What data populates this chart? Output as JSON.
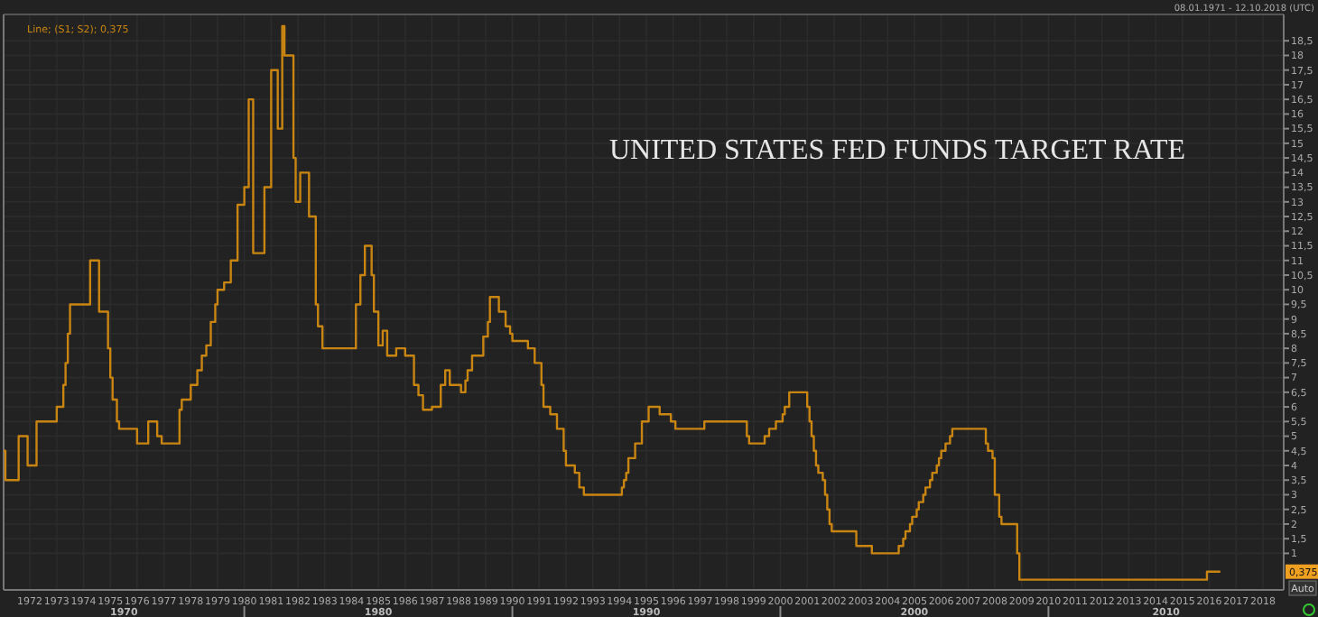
{
  "chart_data": {
    "type": "step",
    "title": "UNITED STATES FED FUNDS TARGET RATE",
    "series": [
      {
        "name": "Line; (S1; S2); 0,375",
        "color": "#c98512",
        "x": [
          "1971-01-08",
          "1971-02",
          "1971-08",
          "1971-12",
          "1972-04",
          "1973-01",
          "1973-04",
          "1973-05",
          "1973-06",
          "1973-07",
          "1974-04",
          "1974-08",
          "1974-12",
          "1975-01",
          "1975-02",
          "1975-04",
          "1975-05",
          "1976-01",
          "1976-06",
          "1976-10",
          "1976-12",
          "1977-08",
          "1977-09",
          "1978-01",
          "1978-04",
          "1978-06",
          "1978-08",
          "1978-10",
          "1978-12",
          "1979-01",
          "1979-04",
          "1979-07",
          "1979-10",
          "1980-01",
          "1980-03",
          "1980-05",
          "1980-10",
          "1981-01",
          "1981-04",
          "1981-06",
          "1981-07",
          "1981-11",
          "1981-12",
          "1982-02",
          "1982-06",
          "1982-09",
          "1982-10",
          "1982-12",
          "1984-03",
          "1984-05",
          "1984-07",
          "1984-10",
          "1984-11",
          "1985-01",
          "1985-03",
          "1985-05",
          "1985-09",
          "1986-01",
          "1986-05",
          "1986-07",
          "1986-09",
          "1987-01",
          "1987-05",
          "1987-07",
          "1987-09",
          "1988-02",
          "1988-04",
          "1988-05",
          "1988-07",
          "1988-12",
          "1989-02",
          "1989-03",
          "1989-07",
          "1989-10",
          "1989-12",
          "1990-01",
          "1990-08",
          "1990-11",
          "1991-02",
          "1991-03",
          "1991-06",
          "1991-09",
          "1991-12",
          "1992-01",
          "1992-05",
          "1992-07",
          "1992-09",
          "1994-02",
          "1994-03",
          "1994-04",
          "1994-05",
          "1994-08",
          "1994-11",
          "1995-02",
          "1995-07",
          "1995-12",
          "1996-02",
          "1997-03",
          "1998-10",
          "1998-11",
          "1999-06",
          "1999-08",
          "1999-11",
          "2000-02",
          "2000-03",
          "2000-05",
          "2001-01",
          "2001-02",
          "2001-03",
          "2001-04",
          "2001-05",
          "2001-06",
          "2001-08",
          "2001-09",
          "2001-10",
          "2001-11",
          "2001-12",
          "2002-11",
          "2003-06",
          "2004-06",
          "2004-08",
          "2004-09",
          "2004-11",
          "2004-12",
          "2005-02",
          "2005-03",
          "2005-05",
          "2005-06",
          "2005-08",
          "2005-09",
          "2005-11",
          "2005-12",
          "2006-01",
          "2006-03",
          "2006-05",
          "2006-06",
          "2007-09",
          "2007-10",
          "2007-12",
          "2008-01",
          "2008-03",
          "2008-04",
          "2008-11",
          "2008-12",
          "2015-12",
          "2016-06"
        ],
        "values": [
          4.5,
          3.5,
          5.0,
          4.0,
          5.5,
          6.0,
          6.75,
          7.5,
          8.5,
          9.5,
          11.0,
          9.25,
          8.0,
          7.0,
          6.25,
          5.5,
          5.25,
          4.75,
          5.5,
          5.0,
          4.75,
          5.9,
          6.25,
          6.75,
          7.25,
          7.75,
          8.1,
          8.9,
          9.5,
          10.0,
          10.25,
          11.0,
          12.9,
          13.5,
          16.5,
          11.25,
          13.5,
          17.5,
          15.5,
          19.0,
          18.0,
          14.5,
          13.0,
          14.0,
          12.5,
          9.5,
          8.75,
          8.0,
          9.5,
          10.5,
          11.5,
          10.5,
          9.25,
          8.1,
          8.6,
          7.75,
          8.0,
          7.75,
          6.75,
          6.4,
          5.9,
          6.0,
          6.75,
          7.25,
          6.75,
          6.5,
          6.9,
          7.25,
          7.75,
          8.4,
          8.9,
          9.75,
          9.25,
          8.75,
          8.5,
          8.25,
          8.0,
          7.5,
          6.75,
          6.0,
          5.75,
          5.25,
          4.5,
          4.0,
          3.75,
          3.25,
          3.0,
          3.25,
          3.5,
          3.75,
          4.25,
          4.75,
          5.5,
          6.0,
          5.75,
          5.5,
          5.25,
          5.5,
          5.0,
          4.75,
          5.0,
          5.25,
          5.5,
          5.75,
          6.0,
          6.5,
          6.0,
          5.5,
          5.0,
          4.5,
          4.0,
          3.75,
          3.5,
          3.0,
          2.5,
          2.0,
          1.75,
          1.25,
          1.0,
          1.25,
          1.5,
          1.75,
          2.0,
          2.25,
          2.5,
          2.75,
          3.0,
          3.25,
          3.5,
          3.75,
          4.0,
          4.25,
          4.5,
          4.75,
          5.0,
          5.25,
          4.75,
          4.5,
          4.25,
          3.0,
          2.25,
          2.0,
          1.0,
          0.1,
          0.375,
          0.375
        ]
      }
    ],
    "xlim": [
      "1971-01-08",
      "2018-10-12"
    ],
    "ylim": [
      -0.25,
      19.4
    ],
    "xticks": [
      "1972",
      "1973",
      "1974",
      "1975",
      "1976",
      "1977",
      "1978",
      "1979",
      "1980",
      "1981",
      "1982",
      "1983",
      "1984",
      "1985",
      "1986",
      "1987",
      "1988",
      "1989",
      "1990",
      "1991",
      "1992",
      "1993",
      "1994",
      "1995",
      "1996",
      "1997",
      "1998",
      "1999",
      "2000",
      "2001",
      "2002",
      "2003",
      "2004",
      "2005",
      "2006",
      "2007",
      "2008",
      "2009",
      "2010",
      "2011",
      "2012",
      "2013",
      "2014",
      "2015",
      "2016",
      "2017",
      "2018"
    ],
    "yticks": [
      1,
      {
        "value": 1.5,
        "label": "1,5"
      },
      2,
      {
        "value": 2.5,
        "label": "2,5"
      },
      3,
      {
        "value": 3.5,
        "label": "3,5"
      },
      4,
      {
        "value": 4.5,
        "label": "4,5"
      },
      5,
      {
        "value": 5.5,
        "label": "5,5"
      },
      6,
      {
        "value": 6.5,
        "label": "6,5"
      },
      7,
      {
        "value": 7.5,
        "label": "7,5"
      },
      8,
      {
        "value": 8.5,
        "label": "8,5"
      },
      9,
      {
        "value": 9.5,
        "label": "9,5"
      },
      10,
      {
        "value": 10.5,
        "label": "10,5"
      },
      11,
      {
        "value": 11.5,
        "label": "11,5"
      },
      12,
      {
        "value": 12.5,
        "label": "12,5"
      },
      13,
      {
        "value": 13.5,
        "label": "13,5"
      },
      14,
      {
        "value": 14.5,
        "label": "14,5"
      },
      15,
      {
        "value": 15.5,
        "label": "15,5"
      },
      16,
      {
        "value": 16.5,
        "label": "16,5"
      },
      17,
      {
        "value": 17.5,
        "label": "17,5"
      },
      18,
      {
        "value": 18.5,
        "label": "18,5"
      }
    ],
    "grid": true,
    "legend": "top left",
    "annotations": [
      "0,375",
      "08.01.1971 - 12.10.2018 (UTC)",
      "Auto",
      "1970",
      "1980",
      "1990",
      "2000",
      "2010"
    ]
  }
}
